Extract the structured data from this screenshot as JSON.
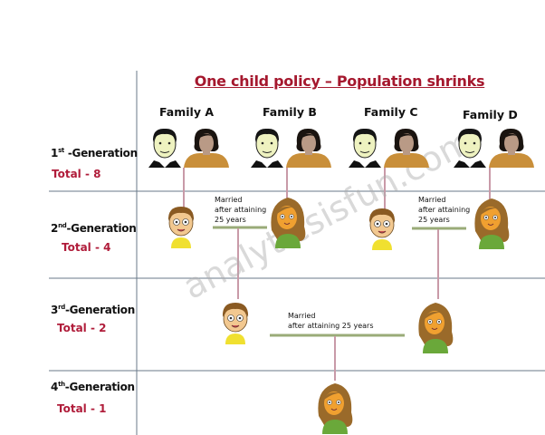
{
  "title": "One child policy – Population shrinks",
  "families": [
    "Family  A",
    "Family  B",
    "Family  C",
    "Family  D"
  ],
  "generations": [
    {
      "ordinal": "1",
      "suffix": "st",
      "label": " -Generation",
      "total": "Total - 8"
    },
    {
      "ordinal": "2",
      "suffix": "nd",
      "label": "-Generation",
      "total": "Total - 4"
    },
    {
      "ordinal": "3",
      "suffix": "rd",
      "label": "-Generation",
      "total": "Total - 2"
    },
    {
      "ordinal": "4",
      "suffix": "th",
      "label": "-Generation",
      "total": "Total - 1"
    }
  ],
  "notes": {
    "gen2_left": [
      "Married",
      "after attaining",
      "25 years"
    ],
    "gen2_right": [
      "Married",
      "after attaining",
      "25 years"
    ],
    "gen3": [
      "Married",
      "after attaining  25 years"
    ]
  },
  "watermark": "analyticsisfun.com",
  "colors": {
    "title": "#a5182e",
    "total": "#b01c3a",
    "marriage_line": "#9aab78",
    "descent_line": "#c99aa8",
    "grid": "#6a7a8a"
  }
}
